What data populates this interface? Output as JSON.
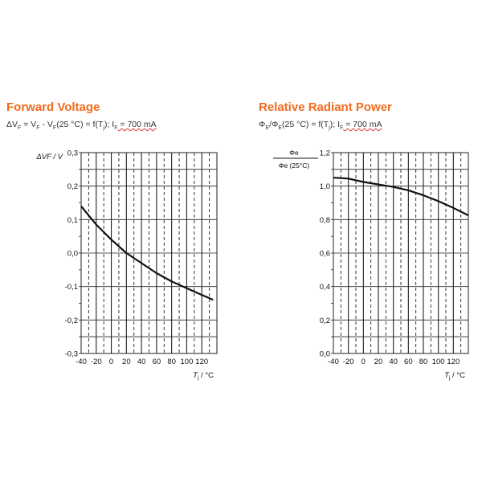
{
  "chart_data": [
    {
      "type": "line",
      "title": "Forward Voltage",
      "subtitle": {
        "parts": [
          "ΔV",
          "F",
          " = V",
          "F",
          " - V",
          "F",
          "(25 °C) = f(",
          "T",
          "j",
          "); I",
          "F",
          " = 700  mA"
        ]
      },
      "ylabel": "ΔVF / V",
      "xlabel_parts": [
        "T",
        "j",
        " / °C"
      ],
      "xlim": [
        -40,
        140
      ],
      "ylim": [
        -0.3,
        0.3
      ],
      "x_ticks": [
        "-40",
        "-20",
        "0",
        "20",
        "40",
        "60",
        "80",
        "100",
        "120"
      ],
      "y_ticks": [
        "0,3",
        "0,2",
        "0,1",
        "0,0",
        "-0,1",
        "-0,2",
        "-0,3"
      ],
      "series": [
        {
          "x": [
            -40,
            -20,
            0,
            20,
            40,
            60,
            80,
            100,
            120,
            135
          ],
          "y": [
            0.14,
            0.085,
            0.04,
            0.0,
            -0.03,
            -0.06,
            -0.085,
            -0.105,
            -0.125,
            -0.14
          ]
        }
      ],
      "grid": true
    },
    {
      "type": "line",
      "title": "Relative Radiant Power",
      "subtitle": {
        "parts": [
          "Φ",
          "E",
          "/Φ",
          "E",
          "(25  °C) = f(",
          "T",
          "j",
          "); I",
          "F",
          " = 700  mA"
        ]
      },
      "ylabel_num": "Φe",
      "ylabel_den": "Φe (25°C)",
      "xlabel_parts": [
        "T",
        "j",
        " / °C"
      ],
      "xlim": [
        -40,
        140
      ],
      "ylim": [
        0.0,
        1.2
      ],
      "x_ticks": [
        "-40",
        "-20",
        "0",
        "20",
        "40",
        "60",
        "80",
        "100",
        "120"
      ],
      "y_ticks": [
        "1,2",
        "1,0",
        "0,8",
        "0,6",
        "0,4",
        "0,2",
        "0,0"
      ],
      "series": [
        {
          "x": [
            -40,
            -20,
            0,
            20,
            40,
            60,
            80,
            100,
            120,
            140
          ],
          "y": [
            1.05,
            1.045,
            1.025,
            1.01,
            0.995,
            0.975,
            0.945,
            0.91,
            0.87,
            0.825
          ]
        }
      ],
      "grid": true
    }
  ]
}
